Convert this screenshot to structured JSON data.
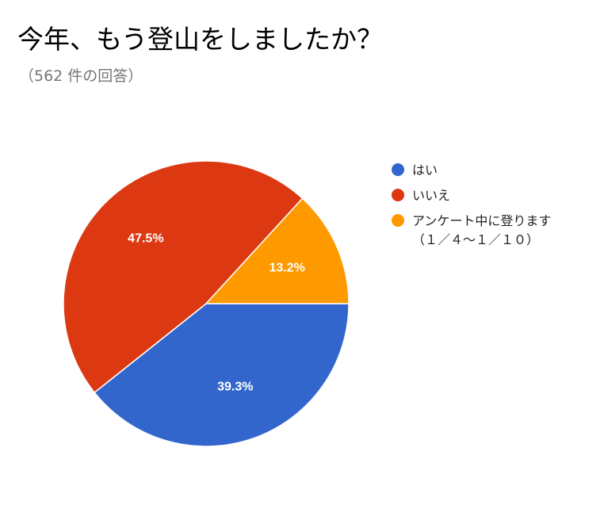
{
  "chart_data": {
    "type": "pie",
    "title": "今年、もう登山をしましたか？",
    "subtitle": "（562 件の回答）",
    "legend_position": "right",
    "slices": [
      {
        "label": "はい",
        "value": 39.3,
        "display": "39.3%",
        "color": "#3366cc"
      },
      {
        "label": "いいえ",
        "value": 47.5,
        "display": "47.5%",
        "color": "#dc3912"
      },
      {
        "label": "アンケート中に登ります（１／４～１／１０）",
        "value": 13.2,
        "display": "13.2%",
        "color": "#ff9900"
      }
    ]
  }
}
